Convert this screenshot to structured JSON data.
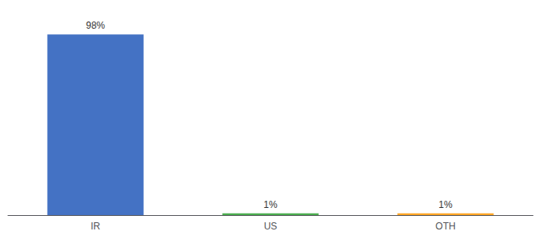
{
  "chart_data": {
    "type": "bar",
    "categories": [
      "IR",
      "US",
      "OTH"
    ],
    "values": [
      98,
      1,
      1
    ],
    "value_labels": [
      "98%",
      "1%",
      "1%"
    ],
    "data_labels": true,
    "colors": [
      "#4472c4",
      "#4caf50",
      "#ffa726"
    ],
    "ylim": [
      0,
      108
    ],
    "tick_labels": "x",
    "grid": false
  }
}
